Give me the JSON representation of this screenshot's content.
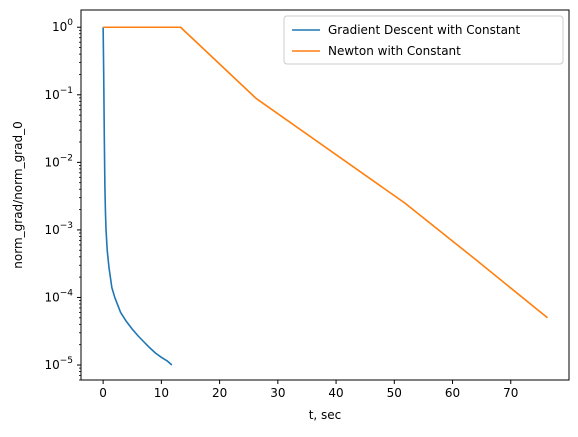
{
  "chart_data": {
    "type": "line",
    "title": "",
    "xlabel": "t, sec",
    "ylabel": "norm_grad/norm_grad_0",
    "xlim": [
      -3.8,
      80.0
    ],
    "ylim": [
      6e-06,
      1.8
    ],
    "yscale": "log",
    "grid": false,
    "legend_position": "top-right",
    "x_ticks": [
      0,
      10,
      20,
      30,
      40,
      50,
      60,
      70
    ],
    "x_tick_labels": [
      "0",
      "10",
      "20",
      "30",
      "40",
      "50",
      "60",
      "70"
    ],
    "y_ticks": [
      1e-05,
      0.0001,
      0.001,
      0.01,
      0.1,
      1
    ],
    "y_tick_labels": [
      {
        "base": "10",
        "exp": "−5"
      },
      {
        "base": "10",
        "exp": "−4"
      },
      {
        "base": "10",
        "exp": "−3"
      },
      {
        "base": "10",
        "exp": "−2"
      },
      {
        "base": "10",
        "exp": "−1"
      },
      {
        "base": "10",
        "exp": "0"
      }
    ],
    "series": [
      {
        "name": "Gradient Descent with Constant",
        "color": "#1f77b4",
        "x": [
          0.0,
          0.1,
          0.2,
          0.3,
          0.4,
          0.5,
          0.7,
          1.0,
          1.5,
          2.0,
          3.0,
          4.0,
          5.0,
          6.0,
          7.0,
          8.0,
          9.0,
          10.0,
          11.0,
          11.8
        ],
        "y": [
          1.0,
          0.2,
          0.025,
          0.0045,
          0.0018,
          0.001,
          0.0005,
          0.00028,
          0.00014,
          0.0001,
          6e-05,
          4.4e-05,
          3.4e-05,
          2.7e-05,
          2.2e-05,
          1.8e-05,
          1.5e-05,
          1.3e-05,
          1.15e-05,
          1e-05
        ]
      },
      {
        "name": "Newton with Constant",
        "color": "#ff7f0e",
        "x": [
          0.0,
          13.3,
          26.3,
          51.8,
          63.7,
          76.3
        ],
        "y": [
          1.0,
          1.0,
          0.088,
          0.0025,
          0.00038,
          5e-05
        ]
      }
    ]
  }
}
